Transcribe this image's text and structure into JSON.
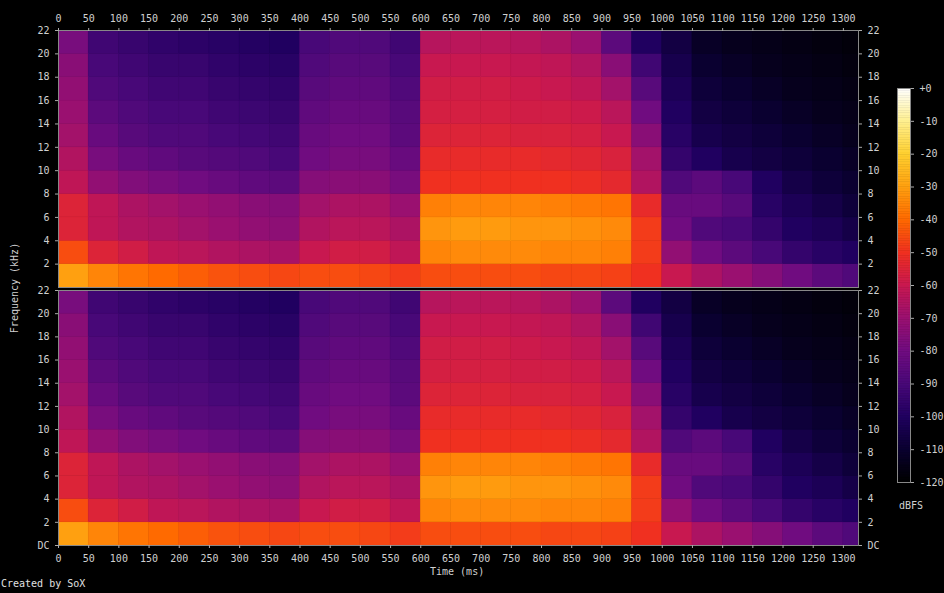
{
  "chart_data": {
    "type": "heatmap",
    "x_label": "Time (ms)",
    "y_label": "Frequency (kHz)",
    "caption": "Created by SoX",
    "xlim": [
      0,
      1325
    ],
    "xticks": [
      0,
      50,
      100,
      150,
      200,
      250,
      300,
      350,
      400,
      450,
      500,
      550,
      600,
      650,
      700,
      750,
      800,
      850,
      900,
      950,
      1000,
      1050,
      1100,
      1150,
      1200,
      1250,
      1300
    ],
    "time_bins": [
      0,
      50,
      100,
      150,
      200,
      250,
      300,
      350,
      400,
      450,
      500,
      550,
      600,
      650,
      700,
      750,
      800,
      850,
      900,
      950,
      1000,
      1050,
      1100,
      1150,
      1200,
      1250,
      1300,
      1325
    ],
    "freq_bins": [
      0,
      2,
      4,
      6,
      8,
      10,
      12,
      14,
      16,
      18,
      20,
      22
    ],
    "colorbar": {
      "label": "dBFS",
      "range": [
        -120,
        0
      ],
      "ticks": [
        {
          "value": 0,
          "label": "+0"
        },
        -10,
        -20,
        -30,
        -40,
        -50,
        -60,
        -70,
        -80,
        -90,
        -100,
        -110,
        -120
      ]
    },
    "panels": [
      {
        "ylim": [
          0,
          22
        ],
        "yticks": [
          2,
          4,
          6,
          8,
          10,
          12,
          14,
          16,
          18,
          20,
          22
        ],
        "cells": [
          [
            -30,
            -35,
            -38,
            -40,
            -42,
            -44,
            -45,
            -46,
            -45,
            -45,
            -46,
            -48,
            -45,
            -45,
            -45,
            -45,
            -46,
            -46,
            -47,
            -50,
            -60,
            -66,
            -70,
            -75,
            -80,
            -85,
            -88
          ],
          [
            -45,
            -55,
            -58,
            -62,
            -63,
            -65,
            -66,
            -67,
            -60,
            -58,
            -58,
            -62,
            -35,
            -34,
            -34,
            -34,
            -35,
            -35,
            -36,
            -48,
            -72,
            -80,
            -85,
            -90,
            -95,
            -98,
            -100
          ],
          [
            -55,
            -62,
            -65,
            -66,
            -68,
            -70,
            -72,
            -73,
            -65,
            -63,
            -63,
            -66,
            -32,
            -31,
            -31,
            -32,
            -32,
            -33,
            -34,
            -48,
            -80,
            -88,
            -90,
            -95,
            -100,
            -102,
            -105
          ],
          [
            -55,
            -62,
            -66,
            -68,
            -70,
            -72,
            -74,
            -75,
            -68,
            -66,
            -66,
            -70,
            -36,
            -35,
            -35,
            -35,
            -36,
            -37,
            -38,
            -52,
            -82,
            -82,
            -86,
            -98,
            -102,
            -105,
            -108
          ],
          [
            -62,
            -72,
            -76,
            -78,
            -80,
            -82,
            -84,
            -85,
            -75,
            -74,
            -74,
            -78,
            -50,
            -50,
            -50,
            -50,
            -50,
            -51,
            -53,
            -65,
            -88,
            -85,
            -90,
            -100,
            -105,
            -108,
            -110
          ],
          [
            -65,
            -78,
            -82,
            -84,
            -86,
            -87,
            -88,
            -90,
            -80,
            -78,
            -78,
            -82,
            -52,
            -52,
            -52,
            -52,
            -53,
            -54,
            -56,
            -68,
            -95,
            -100,
            -104,
            -106,
            -108,
            -110,
            -112
          ],
          [
            -68,
            -82,
            -86,
            -88,
            -88,
            -90,
            -91,
            -92,
            -82,
            -80,
            -80,
            -85,
            -55,
            -55,
            -55,
            -56,
            -56,
            -57,
            -60,
            -74,
            -98,
            -104,
            -106,
            -108,
            -110,
            -112,
            -114
          ],
          [
            -70,
            -85,
            -88,
            -90,
            -90,
            -92,
            -93,
            -94,
            -84,
            -82,
            -82,
            -86,
            -57,
            -57,
            -57,
            -58,
            -58,
            -59,
            -63,
            -80,
            -100,
            -106,
            -108,
            -110,
            -112,
            -114,
            -115
          ],
          [
            -72,
            -88,
            -90,
            -92,
            -92,
            -94,
            -95,
            -96,
            -86,
            -84,
            -84,
            -88,
            -58,
            -58,
            -58,
            -59,
            -60,
            -62,
            -68,
            -86,
            -102,
            -108,
            -110,
            -112,
            -114,
            -115,
            -116
          ],
          [
            -74,
            -90,
            -92,
            -94,
            -94,
            -96,
            -97,
            -98,
            -88,
            -86,
            -86,
            -90,
            -60,
            -60,
            -60,
            -61,
            -62,
            -65,
            -74,
            -92,
            -104,
            -110,
            -112,
            -114,
            -115,
            -116,
            -117
          ],
          [
            -78,
            -92,
            -94,
            -96,
            -97,
            -98,
            -99,
            -100,
            -90,
            -88,
            -88,
            -92,
            -64,
            -63,
            -63,
            -64,
            -66,
            -70,
            -85,
            -100,
            -106,
            -112,
            -114,
            -115,
            -116,
            -117,
            -118
          ]
        ]
      },
      {
        "ylim": [
          0,
          22
        ],
        "yticks": [
          {
            "value": 0,
            "label": "DC"
          },
          2,
          4,
          6,
          8,
          10,
          12,
          14,
          16,
          18,
          20,
          22
        ],
        "cells": [
          [
            -30,
            -35,
            -38,
            -40,
            -42,
            -44,
            -45,
            -46,
            -45,
            -45,
            -46,
            -48,
            -45,
            -45,
            -45,
            -45,
            -46,
            -46,
            -47,
            -50,
            -60,
            -66,
            -70,
            -75,
            -80,
            -85,
            -88
          ],
          [
            -45,
            -55,
            -58,
            -62,
            -63,
            -65,
            -66,
            -67,
            -60,
            -58,
            -58,
            -62,
            -35,
            -34,
            -34,
            -34,
            -35,
            -35,
            -36,
            -48,
            -72,
            -80,
            -85,
            -90,
            -95,
            -98,
            -100
          ],
          [
            -55,
            -62,
            -65,
            -66,
            -68,
            -70,
            -72,
            -73,
            -65,
            -63,
            -63,
            -66,
            -32,
            -31,
            -31,
            -32,
            -32,
            -33,
            -34,
            -48,
            -80,
            -88,
            -90,
            -95,
            -100,
            -102,
            -105
          ],
          [
            -55,
            -62,
            -66,
            -68,
            -70,
            -72,
            -74,
            -75,
            -68,
            -66,
            -66,
            -70,
            -36,
            -35,
            -35,
            -35,
            -36,
            -37,
            -38,
            -52,
            -82,
            -82,
            -86,
            -98,
            -102,
            -105,
            -108
          ],
          [
            -62,
            -72,
            -76,
            -78,
            -80,
            -82,
            -84,
            -85,
            -75,
            -74,
            -74,
            -78,
            -50,
            -50,
            -50,
            -50,
            -50,
            -51,
            -53,
            -65,
            -88,
            -85,
            -90,
            -100,
            -105,
            -108,
            -110
          ],
          [
            -65,
            -78,
            -82,
            -84,
            -86,
            -87,
            -88,
            -90,
            -80,
            -78,
            -78,
            -82,
            -52,
            -52,
            -52,
            -52,
            -53,
            -54,
            -56,
            -68,
            -95,
            -100,
            -104,
            -106,
            -108,
            -110,
            -112
          ],
          [
            -68,
            -82,
            -86,
            -88,
            -88,
            -90,
            -91,
            -92,
            -82,
            -80,
            -80,
            -85,
            -55,
            -55,
            -55,
            -56,
            -56,
            -57,
            -60,
            -74,
            -98,
            -104,
            -106,
            -108,
            -110,
            -112,
            -114
          ],
          [
            -70,
            -85,
            -88,
            -90,
            -90,
            -92,
            -93,
            -94,
            -84,
            -82,
            -82,
            -86,
            -57,
            -57,
            -57,
            -58,
            -58,
            -59,
            -63,
            -80,
            -100,
            -106,
            -108,
            -110,
            -112,
            -114,
            -115
          ],
          [
            -72,
            -88,
            -90,
            -92,
            -92,
            -94,
            -95,
            -96,
            -86,
            -84,
            -84,
            -88,
            -58,
            -58,
            -58,
            -59,
            -60,
            -62,
            -68,
            -86,
            -102,
            -108,
            -110,
            -112,
            -114,
            -115,
            -116
          ],
          [
            -74,
            -90,
            -92,
            -94,
            -94,
            -96,
            -97,
            -98,
            -88,
            -86,
            -86,
            -90,
            -60,
            -60,
            -60,
            -61,
            -62,
            -65,
            -74,
            -92,
            -104,
            -110,
            -112,
            -114,
            -115,
            -116,
            -117
          ],
          [
            -78,
            -92,
            -94,
            -96,
            -97,
            -98,
            -99,
            -100,
            -90,
            -88,
            -88,
            -92,
            -64,
            -63,
            -63,
            -64,
            -66,
            -70,
            -85,
            -100,
            -106,
            -112,
            -114,
            -115,
            -116,
            -117,
            -118
          ]
        ]
      }
    ]
  }
}
